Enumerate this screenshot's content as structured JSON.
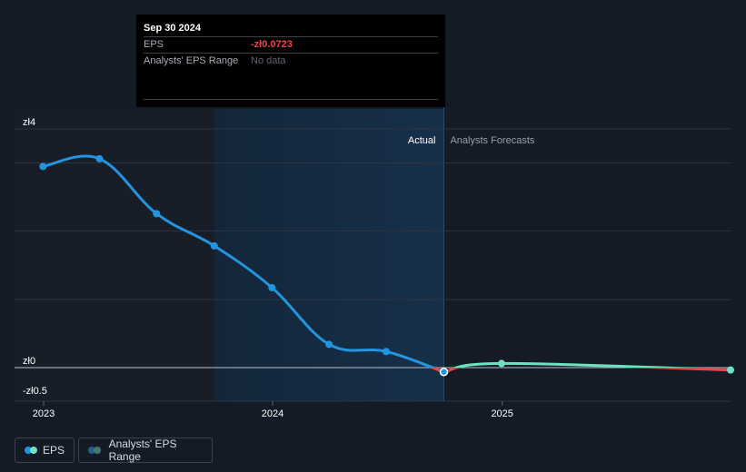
{
  "tooltip": {
    "date": "Sep 30 2024",
    "eps_label": "EPS",
    "eps_value": "-zł0.0723",
    "range_label": "Analysts' EPS Range",
    "range_value": "No data"
  },
  "labels": {
    "actual": "Actual",
    "forecasts": "Analysts Forecasts"
  },
  "legend": {
    "eps": "EPS",
    "range": "Analysts' EPS Range"
  },
  "colors": {
    "background": "#151b26",
    "actual_line": "#2394df",
    "forecast_line": "#6fe0c0",
    "negative_line": "#e8464a",
    "highlight_band": "#132a3f"
  },
  "chart_data": {
    "type": "line",
    "title": "",
    "xlabel": "",
    "ylabel": "",
    "y_ticks": [
      {
        "value": 4,
        "label": "zł4"
      },
      {
        "value": 0,
        "label": "zł0"
      },
      {
        "value": -0.5,
        "label": "-zł0.5"
      }
    ],
    "x_ticks": [
      {
        "value": "2023-01-01",
        "label": "2023"
      },
      {
        "value": "2024-01-01",
        "label": "2024"
      },
      {
        "value": "2025-01-01",
        "label": "2025"
      }
    ],
    "ylim": [
      -0.5,
      4
    ],
    "xlim": [
      "2022-12-01",
      "2025-12-31"
    ],
    "highlight_range": [
      "2023-10-01",
      "2024-09-30"
    ],
    "grid": "horizontal",
    "legend_position": "bottom-left",
    "series": [
      {
        "name": "EPS",
        "kind": "actual",
        "points": [
          {
            "x": "2022-12-31",
            "y": 3.37
          },
          {
            "x": "2023-03-31",
            "y": 3.5
          },
          {
            "x": "2023-06-30",
            "y": 2.58
          },
          {
            "x": "2023-09-30",
            "y": 2.04
          },
          {
            "x": "2023-12-31",
            "y": 1.34
          },
          {
            "x": "2024-03-31",
            "y": 0.39
          },
          {
            "x": "2024-06-30",
            "y": 0.27
          },
          {
            "x": "2024-09-30",
            "y": -0.0723
          }
        ]
      },
      {
        "name": "Analysts Forecasts",
        "kind": "forecast",
        "points": [
          {
            "x": "2024-09-30",
            "y": -0.0723
          },
          {
            "x": "2024-12-31",
            "y": 0.07
          },
          {
            "x": "2025-12-31",
            "y": -0.04
          }
        ]
      }
    ]
  }
}
